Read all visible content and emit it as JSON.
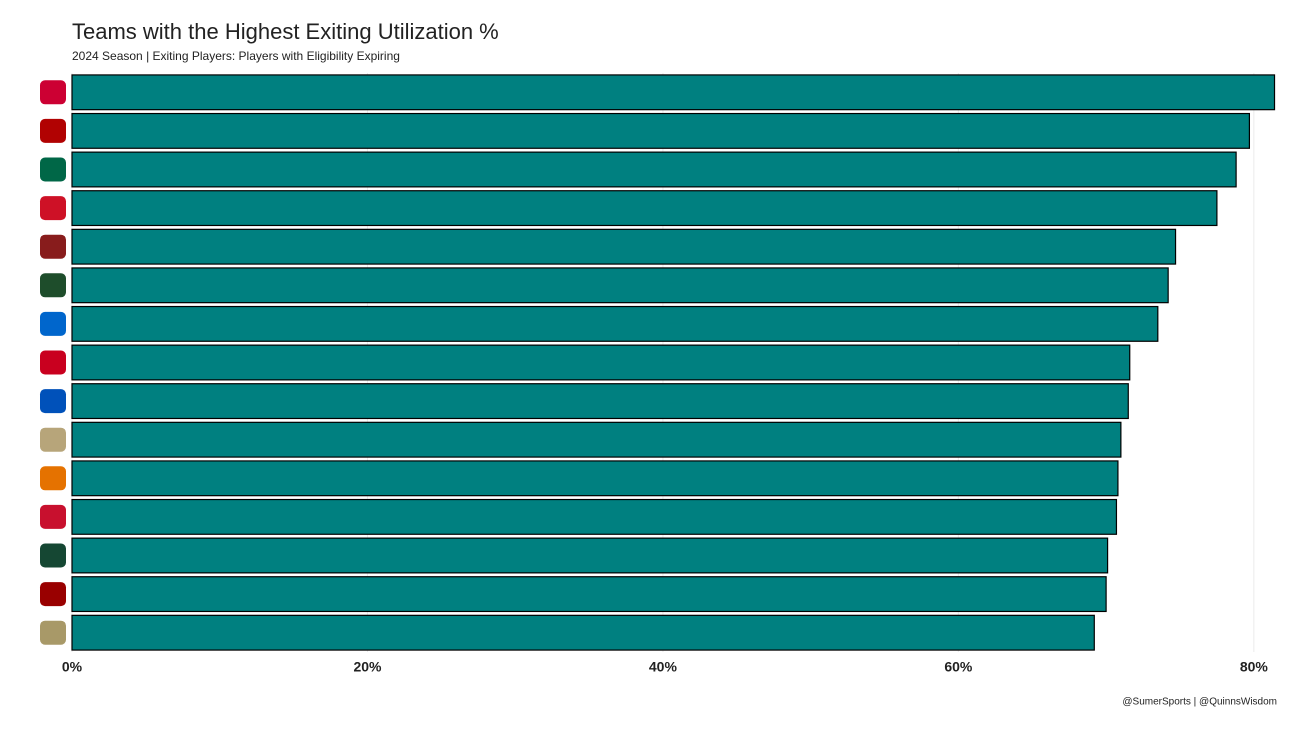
{
  "chart_data": {
    "type": "barh",
    "title": "Teams with the Highest Exiting Utilization %",
    "subtitle": "2024 Season | Exiting Players: Players with Eligibility Expiring",
    "caption": "@SumerSports | @QuinnsWisdom",
    "categories": [
      null,
      null,
      null,
      null,
      null,
      null,
      null,
      null,
      null,
      null,
      null,
      null,
      null,
      null,
      null
    ],
    "values": [
      81.4,
      79.7,
      78.8,
      77.5,
      74.7,
      74.2,
      73.5,
      71.6,
      71.5,
      71.0,
      70.8,
      70.7,
      70.1,
      70.0,
      69.2
    ],
    "color": "#008080",
    "xlim": [
      0,
      81.5
    ],
    "xticks": [
      {
        "value": 0,
        "label": "0%"
      },
      {
        "value": 20,
        "label": "20%"
      },
      {
        "value": 40,
        "label": "40%"
      },
      {
        "value": 60,
        "label": "60%"
      },
      {
        "value": 80,
        "label": "80%"
      }
    ],
    "grid": true
  }
}
